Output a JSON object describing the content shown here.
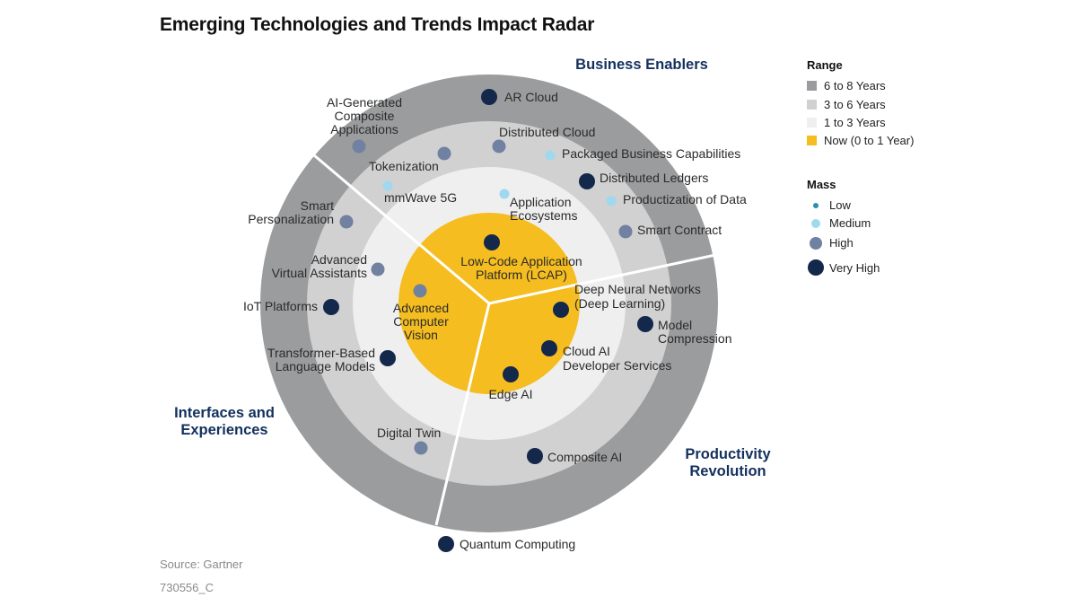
{
  "title": "Emerging Technologies and Trends Impact Radar",
  "colors": {
    "ring_6_8": "#9b9c9d",
    "ring_3_6": "#d1d1d1",
    "ring_1_3": "#efefef",
    "ring_now": "#f5bd1f",
    "sector_text": "#14305e",
    "mass_low": "#2a8fb0",
    "mass_medium": "#9fd8ef",
    "mass_high": "#7081a1",
    "mass_very_high": "#14284b"
  },
  "sectors": {
    "business": "Business Enablers",
    "interfaces_1": "Interfaces and",
    "interfaces_2": "Experiences",
    "productivity_1": "Productivity",
    "productivity_2": "Revolution"
  },
  "technologies": [
    "AR Cloud",
    "AI-Generated",
    "Composite",
    "Applications",
    "Distributed Cloud",
    "Packaged Business Capabilities",
    "Tokenization",
    "Distributed Ledgers",
    "mmWave 5G",
    "Application",
    "Ecosystems",
    "Productization of Data",
    "Smart",
    "Personalization",
    "Smart Contract",
    "Advanced",
    "Virtual Assistants",
    "Low-Code Application",
    "Platform (LCAP)",
    "Deep Neural Networks",
    "(Deep Learning)",
    "IoT Platforms",
    "Advanced",
    "Computer",
    "Vision",
    "Model",
    "Compression",
    "Transformer-Based",
    "Language Models",
    "Cloud AI",
    "Developer Services",
    "Edge AI",
    "Digital Twin",
    "Composite AI",
    "Quantum Computing"
  ],
  "legend": {
    "range_title": "Range",
    "range_items": [
      "6 to 8 Years",
      "3 to 6 Years",
      "1 to 3 Years",
      "Now (0 to 1 Year)"
    ],
    "mass_title": "Mass",
    "mass_items": [
      "Low",
      "Medium",
      "High",
      "Very High"
    ]
  },
  "footer": {
    "source": "Source: Gartner",
    "code": "730556_C"
  }
}
